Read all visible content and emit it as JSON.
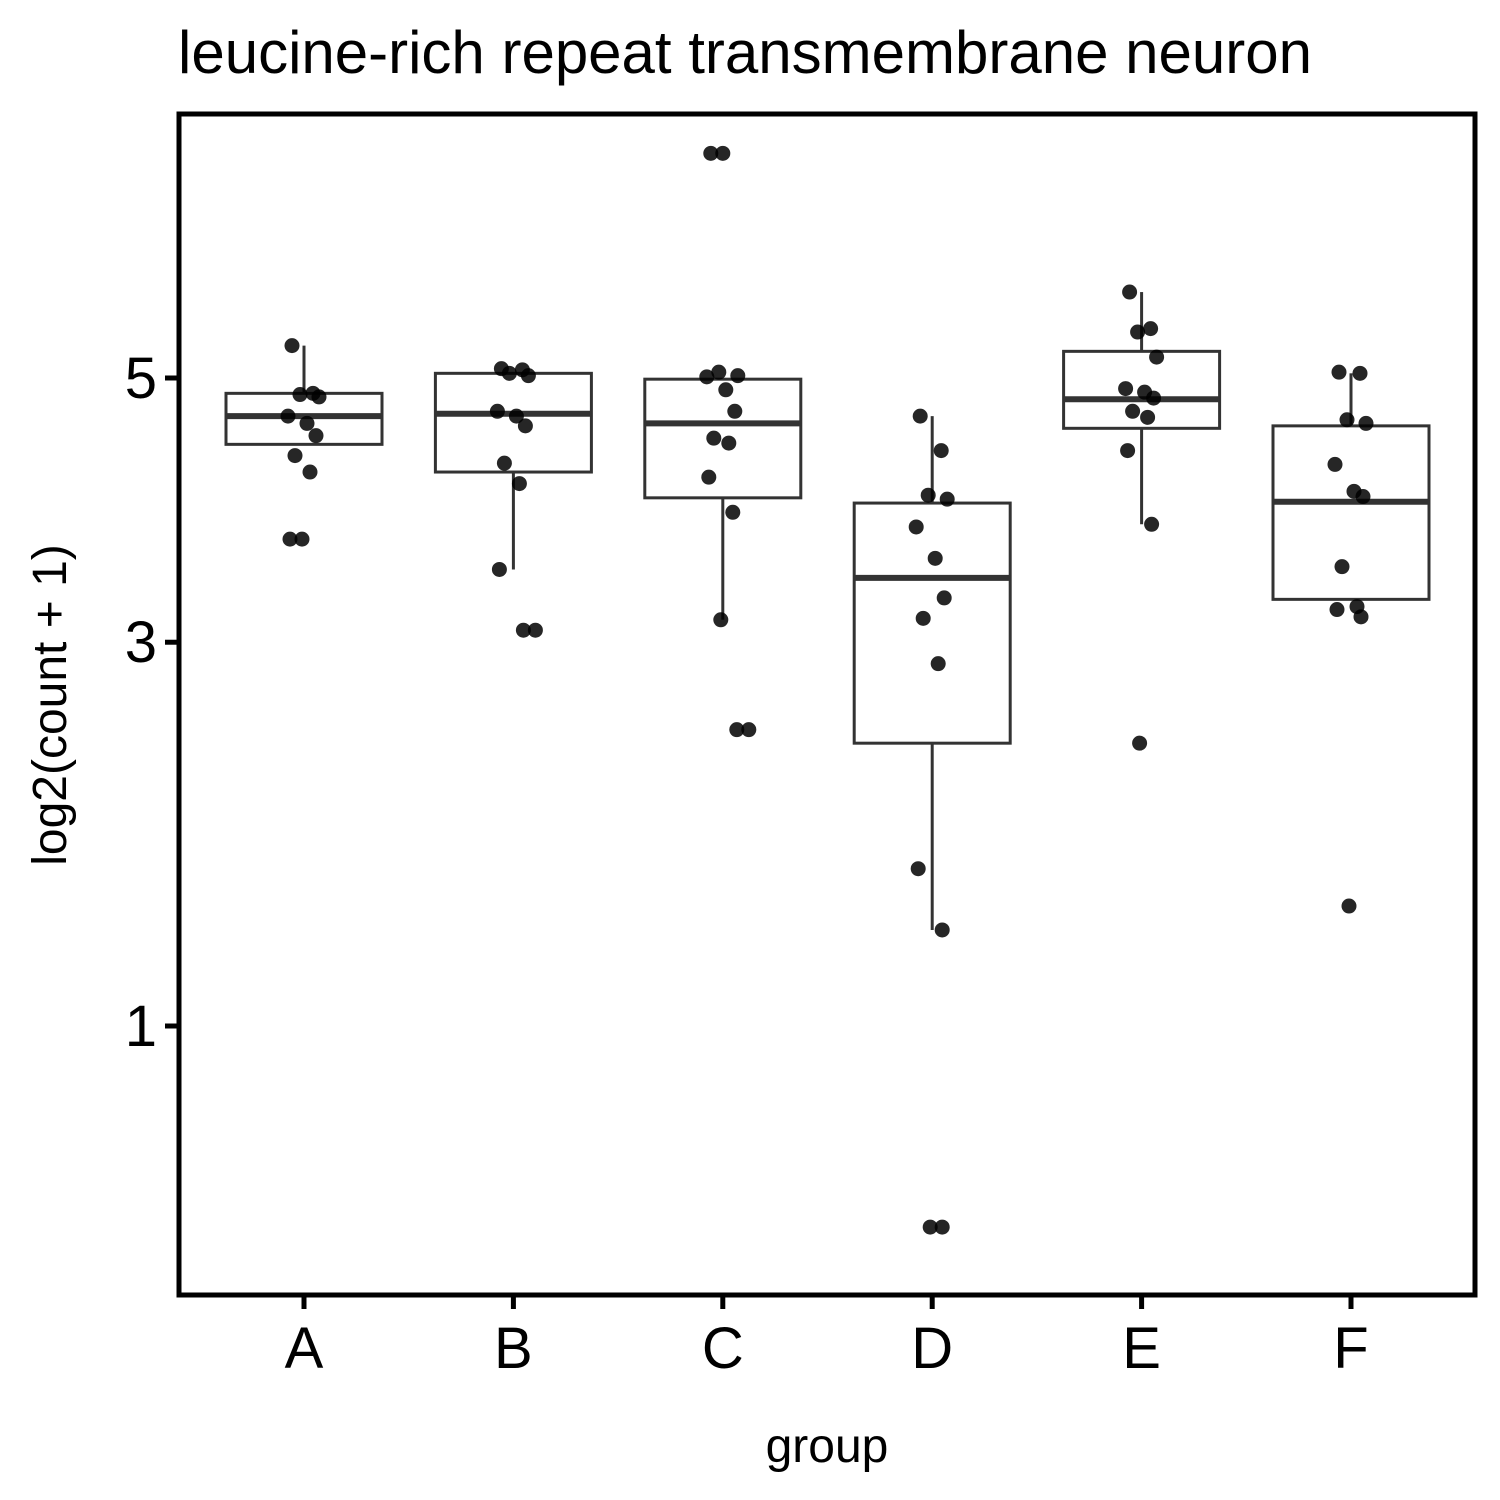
{
  "chart_data": {
    "type": "boxplot",
    "title": "leucine-rich repeat transmembrane neuron",
    "xlabel": "group",
    "ylabel": "log2(count + 1)",
    "y_scale": "sqrt",
    "y_ticks": [
      1,
      3,
      5
    ],
    "y_tick_labels": [
      "1",
      "3",
      "5"
    ],
    "ylim": [
      0.3,
      7.5
    ],
    "grid": false,
    "categories": [
      "A",
      "B",
      "C",
      "D",
      "E",
      "F"
    ],
    "boxes": [
      {
        "group": "A",
        "q1": 4.45,
        "median": 4.68,
        "q3": 4.87,
        "whisker_low": 4.45,
        "whisker_high": 5.28
      },
      {
        "group": "B",
        "q1": 4.23,
        "median": 4.7,
        "q3": 5.04,
        "whisker_low": 3.5,
        "whisker_high": 5.04
      },
      {
        "group": "C",
        "q1": 4.03,
        "median": 4.62,
        "q3": 4.99,
        "whisker_low": 3.15,
        "whisker_high": 4.99
      },
      {
        "group": "D",
        "q1": 2.37,
        "median": 3.44,
        "q3": 3.99,
        "whisker_low": 1.4,
        "whisker_high": 4.68
      },
      {
        "group": "E",
        "q1": 4.58,
        "median": 4.82,
        "q3": 5.23,
        "whisker_low": 3.83,
        "whisker_high": 5.76
      },
      {
        "group": "F",
        "q1": 3.29,
        "median": 4.0,
        "q3": 4.6,
        "whisker_low": 3.29,
        "whisker_high": 5.04
      }
    ],
    "points": {
      "A": [
        5.28,
        4.87,
        4.86,
        4.84,
        4.68,
        4.62,
        4.52,
        4.36,
        4.23,
        3.72,
        3.72
      ],
      "B": [
        5.08,
        5.07,
        5.04,
        5.02,
        4.72,
        4.68,
        4.6,
        4.3,
        4.14,
        3.5,
        3.08,
        3.08
      ],
      "C": [
        7.1,
        7.1,
        5.05,
        5.02,
        5.01,
        4.9,
        4.72,
        4.5,
        4.46,
        4.19,
        3.92,
        3.15,
        2.45,
        2.45
      ],
      "D": [
        4.68,
        4.4,
        4.05,
        4.02,
        3.81,
        3.58,
        3.3,
        3.16,
        2.86,
        1.69,
        1.4,
        0.38,
        0.38
      ],
      "E": [
        5.76,
        5.43,
        5.4,
        5.18,
        4.91,
        4.88,
        4.83,
        4.72,
        4.67,
        4.4,
        3.83,
        2.37
      ],
      "F": [
        5.05,
        5.04,
        4.65,
        4.62,
        4.29,
        4.08,
        4.04,
        3.52,
        3.24,
        3.22,
        3.17,
        1.51
      ]
    }
  }
}
